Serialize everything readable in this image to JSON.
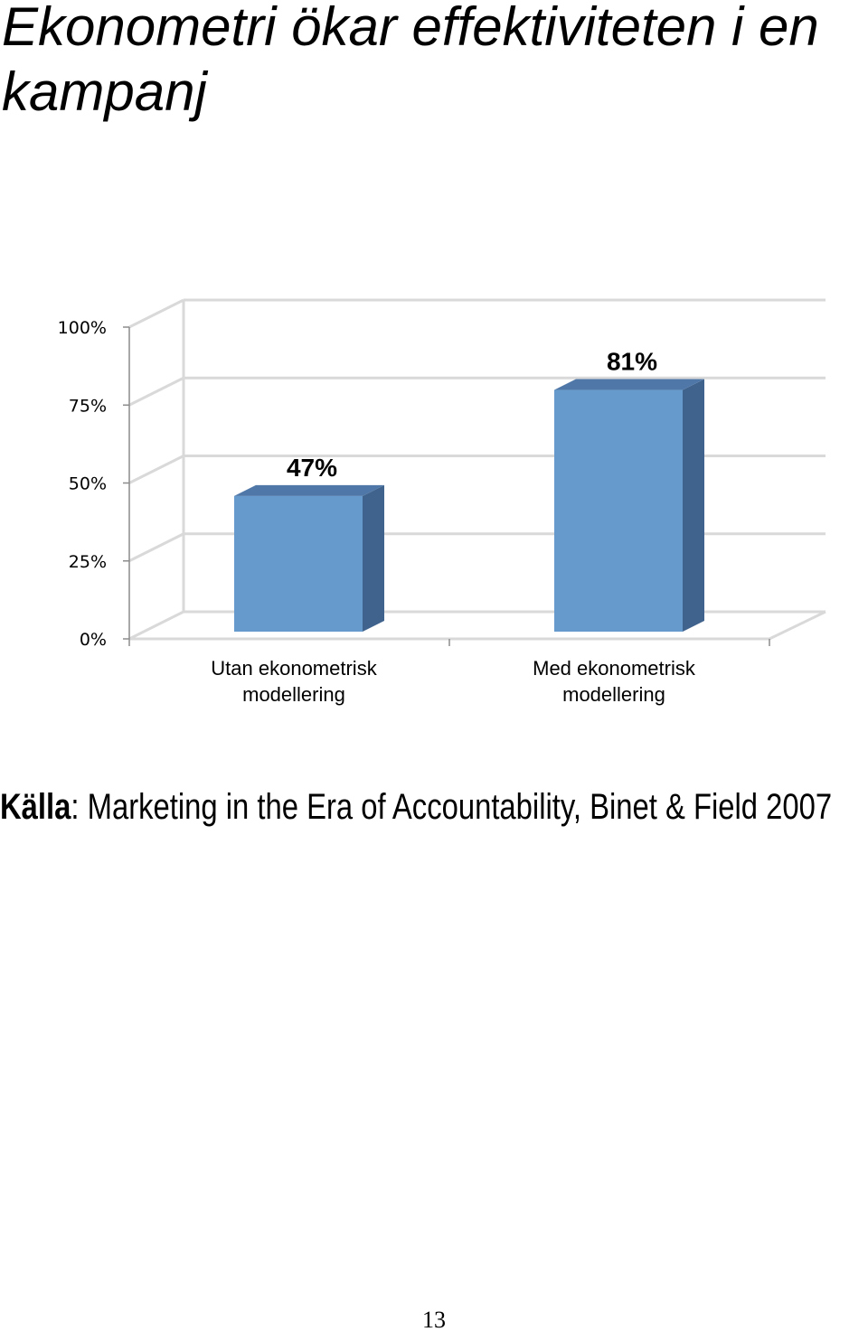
{
  "title": "Ekonometri ökar effektiviteten i en kampanj",
  "chart_data": {
    "type": "bar",
    "categories": [
      "Utan ekonometrisk modellering",
      "Med ekonometrisk modellering"
    ],
    "category_lines": [
      [
        "Utan ekonometrisk",
        "modellering"
      ],
      [
        "Med ekonometrisk",
        "modellering"
      ]
    ],
    "values": [
      47,
      81
    ],
    "data_labels": [
      "47%",
      "81%"
    ],
    "ylim": [
      0,
      100
    ],
    "yticks": [
      0,
      25,
      50,
      75,
      100
    ],
    "ytick_labels": [
      "0%",
      "25%",
      "50%",
      "75%",
      "100%"
    ],
    "grid": true,
    "bar_color": "#6699CC",
    "bar_side_color": "#3F638C",
    "bar_top_color": "#4F78A8",
    "grid_color": "#D9D9D9"
  },
  "source": {
    "label": "Källa",
    "text": ": Marketing in the Era of Accountability, Binet & Field 2007"
  },
  "page_number": "13"
}
